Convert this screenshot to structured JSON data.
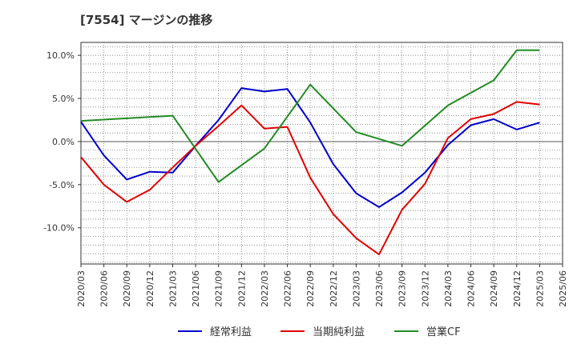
{
  "chart_data": {
    "type": "line",
    "title": "[7554]  マージンの推移",
    "xlabel": "",
    "ylabel": "",
    "ylim": [
      -14.2,
      11.5
    ],
    "grid": true,
    "legend_position": "bottom",
    "y_ticks": [
      {
        "value": 10,
        "label": "10.0%"
      },
      {
        "value": 5,
        "label": "5.0%"
      },
      {
        "value": 0,
        "label": "0.0%"
      },
      {
        "value": -5,
        "label": "-5.0%"
      },
      {
        "value": -10,
        "label": "-10.0%"
      }
    ],
    "x_ticks": [
      "2020/03",
      "2020/06",
      "2020/09",
      "2020/12",
      "2021/03",
      "2021/06",
      "2021/09",
      "2021/12",
      "2022/03",
      "2022/06",
      "2022/09",
      "2022/12",
      "2023/03",
      "2023/06",
      "2023/09",
      "2023/12",
      "2024/03",
      "2024/06",
      "2024/09",
      "2024/12",
      "2025/03",
      "2025/06"
    ],
    "series": [
      {
        "name": "経常利益",
        "color": "#0000cc",
        "points": [
          {
            "x": "2020/03",
            "y": 2.3
          },
          {
            "x": "2020/06",
            "y": -1.6
          },
          {
            "x": "2020/09",
            "y": -4.4
          },
          {
            "x": "2020/12",
            "y": -3.5
          },
          {
            "x": "2021/03",
            "y": -3.6
          },
          {
            "x": "2021/06",
            "y": -0.5
          },
          {
            "x": "2021/09",
            "y": 2.5
          },
          {
            "x": "2021/12",
            "y": 6.2
          },
          {
            "x": "2022/03",
            "y": 5.8
          },
          {
            "x": "2022/06",
            "y": 6.1
          },
          {
            "x": "2022/09",
            "y": 2.2
          },
          {
            "x": "2022/12",
            "y": -2.6
          },
          {
            "x": "2023/03",
            "y": -6.0
          },
          {
            "x": "2023/06",
            "y": -7.6
          },
          {
            "x": "2023/09",
            "y": -5.9
          },
          {
            "x": "2023/12",
            "y": -3.6
          },
          {
            "x": "2024/03",
            "y": -0.4
          },
          {
            "x": "2024/06",
            "y": 1.9
          },
          {
            "x": "2024/09",
            "y": 2.6
          },
          {
            "x": "2024/12",
            "y": 1.4
          },
          {
            "x": "2025/03",
            "y": 2.2
          }
        ]
      },
      {
        "name": "当期純利益",
        "color": "#e00000",
        "points": [
          {
            "x": "2020/03",
            "y": -1.8
          },
          {
            "x": "2020/06",
            "y": -5.0
          },
          {
            "x": "2020/09",
            "y": -7.0
          },
          {
            "x": "2020/12",
            "y": -5.6
          },
          {
            "x": "2021/03",
            "y": -3.0
          },
          {
            "x": "2021/06",
            "y": -0.5
          },
          {
            "x": "2021/09",
            "y": 1.8
          },
          {
            "x": "2021/12",
            "y": 4.2
          },
          {
            "x": "2022/03",
            "y": 1.5
          },
          {
            "x": "2022/06",
            "y": 1.7
          },
          {
            "x": "2022/09",
            "y": -4.2
          },
          {
            "x": "2022/12",
            "y": -8.4
          },
          {
            "x": "2023/03",
            "y": -11.2
          },
          {
            "x": "2023/06",
            "y": -13.1
          },
          {
            "x": "2023/09",
            "y": -7.9
          },
          {
            "x": "2023/12",
            "y": -4.9
          },
          {
            "x": "2024/03",
            "y": 0.4
          },
          {
            "x": "2024/06",
            "y": 2.6
          },
          {
            "x": "2024/09",
            "y": 3.2
          },
          {
            "x": "2024/12",
            "y": 4.6
          },
          {
            "x": "2025/03",
            "y": 4.3
          }
        ]
      },
      {
        "name": "営業CF",
        "color": "#228b22",
        "points": [
          {
            "x": "2020/03",
            "y": 2.4
          },
          {
            "x": "2021/03",
            "y": 3.0
          },
          {
            "x": "2021/09",
            "y": -4.7
          },
          {
            "x": "2022/03",
            "y": -0.8
          },
          {
            "x": "2022/09",
            "y": 6.6
          },
          {
            "x": "2023/03",
            "y": 1.1
          },
          {
            "x": "2023/09",
            "y": -0.5
          },
          {
            "x": "2024/03",
            "y": 4.2
          },
          {
            "x": "2024/09",
            "y": 7.1
          },
          {
            "x": "2024/12",
            "y": 10.6
          },
          {
            "x": "2025/03",
            "y": 10.6
          }
        ]
      }
    ]
  }
}
